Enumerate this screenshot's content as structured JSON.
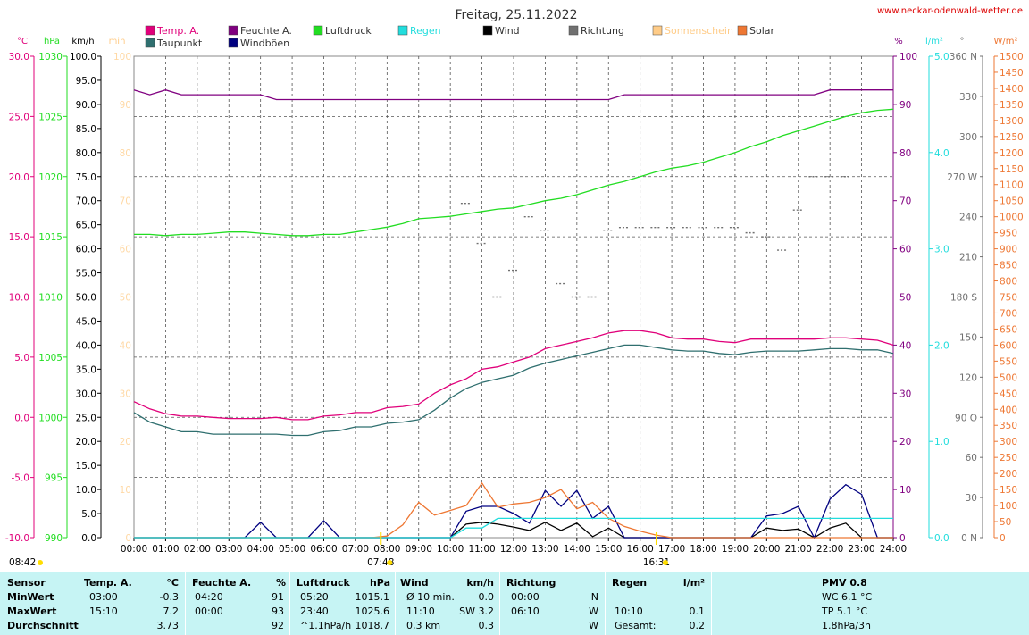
{
  "title": "Freitag, 25.11.2022",
  "website": "www.neckar-odenwald-wetter.de",
  "legend": [
    {
      "label": "Temp. A.",
      "color": "#e0007a"
    },
    {
      "label": "Taupunkt",
      "color": "#2f6f6f"
    },
    {
      "label": "Feuchte A.",
      "color": "#800080"
    },
    {
      "label": "Windböen",
      "color": "#000080"
    },
    {
      "label": "Luftdruck",
      "color": "#22dd22"
    },
    {
      "label": "Regen",
      "color": "#22dddd"
    },
    {
      "label": "Wind",
      "color": "#000000"
    },
    {
      "label": "Richtung",
      "color": "#707070"
    },
    {
      "label": "Sonnenschein",
      "color": "#ffcc88"
    },
    {
      "label": "Solar",
      "color": "#ee7733"
    }
  ],
  "axis_units": {
    "temp": "°C",
    "hpa": "hPa",
    "kmh": "km/h",
    "min": "min",
    "pct": "%",
    "rain": "l/m²",
    "dir": "°",
    "solar": "W/m²"
  },
  "axes": {
    "temp_ticks": [
      "30.0",
      "25.0",
      "20.0",
      "15.0",
      "10.0",
      "5.0",
      "0.0",
      "-5.0",
      "-10.0"
    ],
    "hpa_ticks": [
      "1030",
      "1025",
      "1020",
      "1015",
      "1010",
      "1005",
      "1000",
      "995",
      "990"
    ],
    "kmh_ticks": [
      "100.0",
      "95.0",
      "90.0",
      "85.0",
      "80.0",
      "75.0",
      "70.0",
      "65.0",
      "60.0",
      "55.0",
      "50.0",
      "45.0",
      "40.0",
      "35.0",
      "30.0",
      "25.0",
      "20.0",
      "15.0",
      "10.0",
      "5.0",
      "0.0"
    ],
    "min_ticks": [
      "100",
      "90",
      "80",
      "70",
      "60",
      "50",
      "40",
      "30",
      "20",
      "10",
      "0"
    ],
    "pct_ticks": [
      "100",
      "90",
      "80",
      "70",
      "60",
      "50",
      "40",
      "30",
      "20",
      "10",
      "0"
    ],
    "rain_ticks": [
      "5.0",
      "4.0",
      "3.0",
      "2.0",
      "1.0",
      "0.0"
    ],
    "dir_ticks": [
      "360 N",
      "330",
      "300",
      "270 W",
      "240",
      "210",
      "180 S",
      "150",
      "120",
      "90 O",
      "60",
      "30",
      "0 N"
    ],
    "solar_ticks": [
      "1500",
      "1450",
      "1400",
      "1350",
      "1300",
      "1250",
      "1200",
      "1150",
      "1100",
      "1050",
      "1000",
      "950",
      "900",
      "850",
      "800",
      "750",
      "700",
      "650",
      "600",
      "550",
      "500",
      "450",
      "400",
      "350",
      "300",
      "250",
      "200",
      "150",
      "100",
      "50",
      "0"
    ],
    "time_ticks": [
      "00:00",
      "01:00",
      "02:00",
      "03:00",
      "04:00",
      "05:00",
      "06:00",
      "07:00",
      "08:00",
      "09:00",
      "10:00",
      "11:00",
      "12:00",
      "13:00",
      "14:00",
      "15:00",
      "16:00",
      "17:00",
      "18:00",
      "19:00",
      "20:00",
      "21:00",
      "22:00",
      "23:00",
      "24:00"
    ]
  },
  "sun": {
    "rise": "07:48",
    "set": "16:31",
    "daylight": "08:42"
  },
  "chart_data": {
    "type": "line",
    "xlabel": "",
    "x_hours": [
      0,
      0.5,
      1,
      1.5,
      2,
      2.5,
      3,
      3.5,
      4,
      4.5,
      5,
      5.5,
      6,
      6.5,
      7,
      7.5,
      8,
      8.5,
      9,
      9.5,
      10,
      10.5,
      11,
      11.5,
      12,
      12.5,
      13,
      13.5,
      14,
      14.5,
      15,
      15.5,
      16,
      16.5,
      17,
      17.5,
      18,
      18.5,
      19,
      19.5,
      20,
      20.5,
      21,
      21.5,
      22,
      22.5,
      23,
      23.5,
      24
    ],
    "series": [
      {
        "name": "Temp. A.",
        "axis": "°C",
        "values": [
          1.3,
          0.7,
          0.3,
          0.1,
          0.1,
          0.0,
          -0.1,
          -0.1,
          -0.1,
          0.0,
          -0.2,
          -0.2,
          0.1,
          0.2,
          0.4,
          0.4,
          0.8,
          0.9,
          1.1,
          2.0,
          2.7,
          3.2,
          4.0,
          4.2,
          4.6,
          5.0,
          5.7,
          6.0,
          6.3,
          6.6,
          7.0,
          7.2,
          7.2,
          7.0,
          6.6,
          6.5,
          6.5,
          6.3,
          6.2,
          6.5,
          6.5,
          6.5,
          6.5,
          6.5,
          6.6,
          6.6,
          6.5,
          6.4,
          6.0
        ]
      },
      {
        "name": "Taupunkt",
        "axis": "°C",
        "values": [
          0.4,
          -0.4,
          -0.8,
          -1.2,
          -1.2,
          -1.4,
          -1.4,
          -1.4,
          -1.4,
          -1.4,
          -1.5,
          -1.5,
          -1.2,
          -1.1,
          -0.8,
          -0.8,
          -0.5,
          -0.4,
          -0.2,
          0.6,
          1.6,
          2.4,
          2.9,
          3.2,
          3.5,
          4.1,
          4.5,
          4.8,
          5.1,
          5.4,
          5.7,
          6.0,
          6.0,
          5.8,
          5.6,
          5.5,
          5.5,
          5.3,
          5.2,
          5.4,
          5.5,
          5.5,
          5.5,
          5.6,
          5.7,
          5.7,
          5.6,
          5.6,
          5.3
        ]
      },
      {
        "name": "Feuchte A.",
        "axis": "%",
        "values": [
          93,
          92,
          93,
          92,
          92,
          92,
          92,
          92,
          92,
          91,
          91,
          91,
          91,
          91,
          91,
          91,
          91,
          91,
          91,
          91,
          91,
          91,
          91,
          91,
          91,
          91,
          91,
          91,
          91,
          91,
          91,
          92,
          92,
          92,
          92,
          92,
          92,
          92,
          92,
          92,
          92,
          92,
          92,
          92,
          93,
          93,
          93,
          93,
          93
        ]
      },
      {
        "name": "Luftdruck",
        "axis": "hPa",
        "values": [
          1015.2,
          1015.2,
          1015.1,
          1015.2,
          1015.2,
          1015.3,
          1015.4,
          1015.4,
          1015.3,
          1015.2,
          1015.1,
          1015.1,
          1015.2,
          1015.2,
          1015.4,
          1015.6,
          1015.8,
          1016.1,
          1016.5,
          1016.6,
          1016.7,
          1016.9,
          1017.1,
          1017.3,
          1017.4,
          1017.7,
          1018.0,
          1018.2,
          1018.5,
          1018.9,
          1019.3,
          1019.6,
          1020.0,
          1020.4,
          1020.7,
          1020.9,
          1021.2,
          1021.6,
          1022.0,
          1022.5,
          1022.9,
          1023.4,
          1023.8,
          1024.2,
          1024.6,
          1025.0,
          1025.3,
          1025.5,
          1025.6
        ]
      },
      {
        "name": "Wind",
        "axis": "km/h",
        "values": [
          0,
          0,
          0,
          0,
          0,
          0,
          0,
          0,
          0,
          0,
          0,
          0,
          0,
          0,
          0,
          0,
          0,
          0,
          0,
          0,
          0,
          2.8,
          3.2,
          2.8,
          2.2,
          1.5,
          3.2,
          1.5,
          3.0,
          0.2,
          2.0,
          0,
          0,
          0,
          0,
          0,
          0,
          0,
          0,
          0,
          2.0,
          1.5,
          1.8,
          0,
          2.0,
          3.0,
          0,
          0,
          0
        ]
      },
      {
        "name": "Windböen",
        "axis": "km/h",
        "values": [
          0,
          0,
          0,
          0,
          0,
          0,
          0,
          0,
          3.2,
          0,
          0,
          0,
          3.5,
          0,
          0,
          0,
          0,
          0,
          0,
          0,
          0,
          5.5,
          6.5,
          6.5,
          5.0,
          3.0,
          9.8,
          6.5,
          9.8,
          4.0,
          6.5,
          0,
          0,
          0,
          0,
          0,
          0,
          0,
          0,
          0,
          4.5,
          5.0,
          6.5,
          0,
          8.0,
          11.0,
          9.0,
          0,
          0
        ]
      },
      {
        "name": "Solar",
        "axis": "W/m²",
        "values": [
          0,
          0,
          0,
          0,
          0,
          0,
          0,
          0,
          0,
          0,
          0,
          0,
          0,
          0,
          0,
          0,
          5,
          40,
          110,
          70,
          85,
          100,
          170,
          95,
          105,
          110,
          125,
          150,
          90,
          110,
          60,
          35,
          20,
          8,
          0,
          0,
          0,
          0,
          0,
          0,
          0,
          0,
          0,
          0,
          0,
          0,
          0,
          0,
          0
        ]
      },
      {
        "name": "Regen",
        "axis": "l/m²",
        "values": [
          0,
          0,
          0,
          0,
          0,
          0,
          0,
          0,
          0,
          0,
          0,
          0,
          0,
          0,
          0,
          0,
          0,
          0,
          0,
          0,
          0,
          0.1,
          0.1,
          0.2,
          0.2,
          0.2,
          0.2,
          0.2,
          0.2,
          0.2,
          0.2,
          0.2,
          0.2,
          0.2,
          0.2,
          0.2,
          0.2,
          0.2,
          0.2,
          0.2,
          0.2,
          0.2,
          0.2,
          0.2,
          0.2,
          0.2,
          0.2,
          0.2,
          0.2
        ]
      },
      {
        "name": "Richtung",
        "axis": "°",
        "values": [
          null,
          null,
          null,
          null,
          null,
          null,
          null,
          null,
          null,
          null,
          null,
          null,
          null,
          null,
          null,
          null,
          null,
          null,
          null,
          null,
          null,
          250,
          220,
          180,
          200,
          240,
          230,
          190,
          180,
          180,
          230,
          232,
          232,
          232,
          232,
          232,
          232,
          232,
          232,
          228,
          225,
          215,
          245,
          270,
          270,
          270,
          null,
          null,
          null
        ]
      }
    ]
  },
  "table": {
    "headers": [
      {
        "a": "Sensor",
        "b": ""
      },
      {
        "a": "Temp. A.",
        "b": "°C"
      },
      {
        "a": "Feuchte A.",
        "b": "%"
      },
      {
        "a": "Luftdruck",
        "b": "hPa"
      },
      {
        "a": "Wind",
        "b": "km/h"
      },
      {
        "a": "Richtung",
        "b": ""
      },
      {
        "a": "Regen",
        "b": "l/m²"
      },
      {
        "a": "PMV 0.8",
        "b": ""
      }
    ],
    "rows": [
      {
        "label": "MinWert",
        "c": [
          "03:00",
          "-0.3",
          "04:20",
          "91",
          "05:20",
          "1015.1",
          "Ø 10 min.",
          "0.0",
          "00:00",
          "N",
          "",
          "",
          "WC 6.1 °C"
        ]
      },
      {
        "label": "MaxWert",
        "c": [
          "15:10",
          "7.2",
          "00:00",
          "93",
          "23:40",
          "1025.6",
          "11:10",
          "SW 3.2",
          "06:10",
          "W",
          "10:10",
          "0.1",
          "TP 5.1 °C"
        ]
      },
      {
        "label": "Durchschnitt",
        "c": [
          "",
          "3.73",
          "",
          "92",
          "^1.1hPa/h",
          "1018.7",
          "0,3 km",
          "0.3",
          "",
          "W",
          "Gesamt:",
          "0.2",
          "1.8hPa/3h"
        ]
      }
    ]
  }
}
